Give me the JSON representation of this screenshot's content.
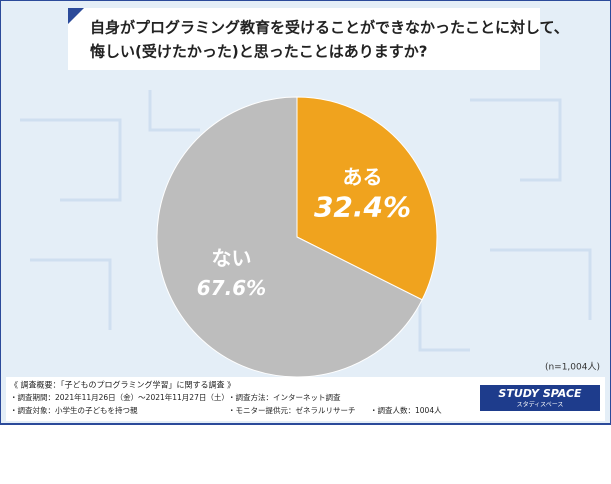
{
  "chart_data": {
    "type": "pie",
    "title": [
      "自身がプログラミング教育を受けることができなかったことに対して、",
      "悔しい(受けたかった)と思ったことはありますか?"
    ],
    "categories": [
      "ある",
      "ない"
    ],
    "values": [
      32.4,
      67.6
    ],
    "value_labels": [
      "32.4%",
      "67.6%"
    ],
    "colors": [
      "#f0a31e",
      "#bdbdbd"
    ],
    "note": "(n=1,004人)"
  },
  "footer": {
    "heading": "《 調査概要：「子どものプログラミング学習」に関する調査 》",
    "items": [
      "・調査期間：2021年11月26日（金）～2021年11月27日（土）",
      "・調査方法：インターネット調査",
      "・調査対象：小学生の子どもを持つ親",
      "・モニター提供元：ゼネラルリサーチ",
      "・調査人数：1004人"
    ]
  },
  "logo": {
    "name": "STUDY SPACE",
    "kana": "スタディスペース"
  }
}
